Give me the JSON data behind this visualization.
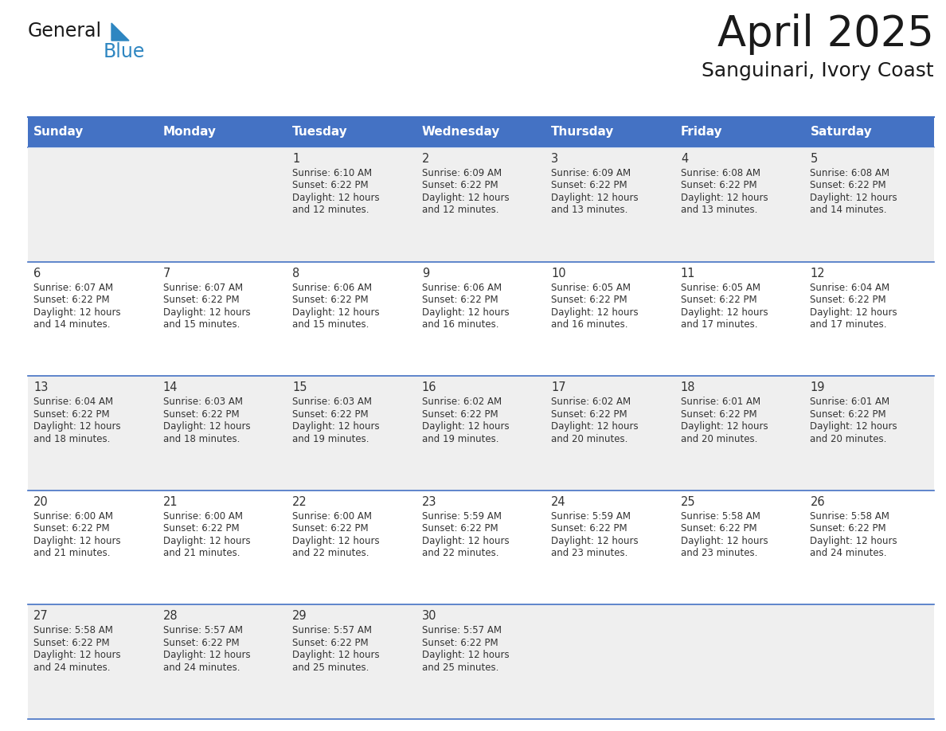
{
  "title": "April 2025",
  "subtitle": "Sanguinari, Ivory Coast",
  "days_of_week": [
    "Sunday",
    "Monday",
    "Tuesday",
    "Wednesday",
    "Thursday",
    "Friday",
    "Saturday"
  ],
  "header_bg": "#4472C4",
  "header_text": "#FFFFFF",
  "row_bg_odd": "#EFEFEF",
  "row_bg_even": "#FFFFFF",
  "border_color": "#4472C4",
  "text_color": "#333333",
  "weeks": [
    {
      "days": [
        {
          "day": null,
          "sunrise": null,
          "sunset": null,
          "daylight": null
        },
        {
          "day": null,
          "sunrise": null,
          "sunset": null,
          "daylight": null
        },
        {
          "day": "1",
          "sunrise": "6:10 AM",
          "sunset": "6:22 PM",
          "daylight": "12 hours\nand 12 minutes."
        },
        {
          "day": "2",
          "sunrise": "6:09 AM",
          "sunset": "6:22 PM",
          "daylight": "12 hours\nand 12 minutes."
        },
        {
          "day": "3",
          "sunrise": "6:09 AM",
          "sunset": "6:22 PM",
          "daylight": "12 hours\nand 13 minutes."
        },
        {
          "day": "4",
          "sunrise": "6:08 AM",
          "sunset": "6:22 PM",
          "daylight": "12 hours\nand 13 minutes."
        },
        {
          "day": "5",
          "sunrise": "6:08 AM",
          "sunset": "6:22 PM",
          "daylight": "12 hours\nand 14 minutes."
        }
      ]
    },
    {
      "days": [
        {
          "day": "6",
          "sunrise": "6:07 AM",
          "sunset": "6:22 PM",
          "daylight": "12 hours\nand 14 minutes."
        },
        {
          "day": "7",
          "sunrise": "6:07 AM",
          "sunset": "6:22 PM",
          "daylight": "12 hours\nand 15 minutes."
        },
        {
          "day": "8",
          "sunrise": "6:06 AM",
          "sunset": "6:22 PM",
          "daylight": "12 hours\nand 15 minutes."
        },
        {
          "day": "9",
          "sunrise": "6:06 AM",
          "sunset": "6:22 PM",
          "daylight": "12 hours\nand 16 minutes."
        },
        {
          "day": "10",
          "sunrise": "6:05 AM",
          "sunset": "6:22 PM",
          "daylight": "12 hours\nand 16 minutes."
        },
        {
          "day": "11",
          "sunrise": "6:05 AM",
          "sunset": "6:22 PM",
          "daylight": "12 hours\nand 17 minutes."
        },
        {
          "day": "12",
          "sunrise": "6:04 AM",
          "sunset": "6:22 PM",
          "daylight": "12 hours\nand 17 minutes."
        }
      ]
    },
    {
      "days": [
        {
          "day": "13",
          "sunrise": "6:04 AM",
          "sunset": "6:22 PM",
          "daylight": "12 hours\nand 18 minutes."
        },
        {
          "day": "14",
          "sunrise": "6:03 AM",
          "sunset": "6:22 PM",
          "daylight": "12 hours\nand 18 minutes."
        },
        {
          "day": "15",
          "sunrise": "6:03 AM",
          "sunset": "6:22 PM",
          "daylight": "12 hours\nand 19 minutes."
        },
        {
          "day": "16",
          "sunrise": "6:02 AM",
          "sunset": "6:22 PM",
          "daylight": "12 hours\nand 19 minutes."
        },
        {
          "day": "17",
          "sunrise": "6:02 AM",
          "sunset": "6:22 PM",
          "daylight": "12 hours\nand 20 minutes."
        },
        {
          "day": "18",
          "sunrise": "6:01 AM",
          "sunset": "6:22 PM",
          "daylight": "12 hours\nand 20 minutes."
        },
        {
          "day": "19",
          "sunrise": "6:01 AM",
          "sunset": "6:22 PM",
          "daylight": "12 hours\nand 20 minutes."
        }
      ]
    },
    {
      "days": [
        {
          "day": "20",
          "sunrise": "6:00 AM",
          "sunset": "6:22 PM",
          "daylight": "12 hours\nand 21 minutes."
        },
        {
          "day": "21",
          "sunrise": "6:00 AM",
          "sunset": "6:22 PM",
          "daylight": "12 hours\nand 21 minutes."
        },
        {
          "day": "22",
          "sunrise": "6:00 AM",
          "sunset": "6:22 PM",
          "daylight": "12 hours\nand 22 minutes."
        },
        {
          "day": "23",
          "sunrise": "5:59 AM",
          "sunset": "6:22 PM",
          "daylight": "12 hours\nand 22 minutes."
        },
        {
          "day": "24",
          "sunrise": "5:59 AM",
          "sunset": "6:22 PM",
          "daylight": "12 hours\nand 23 minutes."
        },
        {
          "day": "25",
          "sunrise": "5:58 AM",
          "sunset": "6:22 PM",
          "daylight": "12 hours\nand 23 minutes."
        },
        {
          "day": "26",
          "sunrise": "5:58 AM",
          "sunset": "6:22 PM",
          "daylight": "12 hours\nand 24 minutes."
        }
      ]
    },
    {
      "days": [
        {
          "day": "27",
          "sunrise": "5:58 AM",
          "sunset": "6:22 PM",
          "daylight": "12 hours\nand 24 minutes."
        },
        {
          "day": "28",
          "sunrise": "5:57 AM",
          "sunset": "6:22 PM",
          "daylight": "12 hours\nand 24 minutes."
        },
        {
          "day": "29",
          "sunrise": "5:57 AM",
          "sunset": "6:22 PM",
          "daylight": "12 hours\nand 25 minutes."
        },
        {
          "day": "30",
          "sunrise": "5:57 AM",
          "sunset": "6:22 PM",
          "daylight": "12 hours\nand 25 minutes."
        },
        {
          "day": null,
          "sunrise": null,
          "sunset": null,
          "daylight": null
        },
        {
          "day": null,
          "sunrise": null,
          "sunset": null,
          "daylight": null
        },
        {
          "day": null,
          "sunrise": null,
          "sunset": null,
          "daylight": null
        }
      ]
    }
  ],
  "logo_text1": "General",
  "logo_text2": "Blue",
  "logo_text1_color": "#1a1a1a",
  "logo_text2_color": "#2E86C1",
  "logo_triangle_color": "#2E86C1",
  "title_color": "#1a1a1a",
  "subtitle_color": "#1a1a1a"
}
